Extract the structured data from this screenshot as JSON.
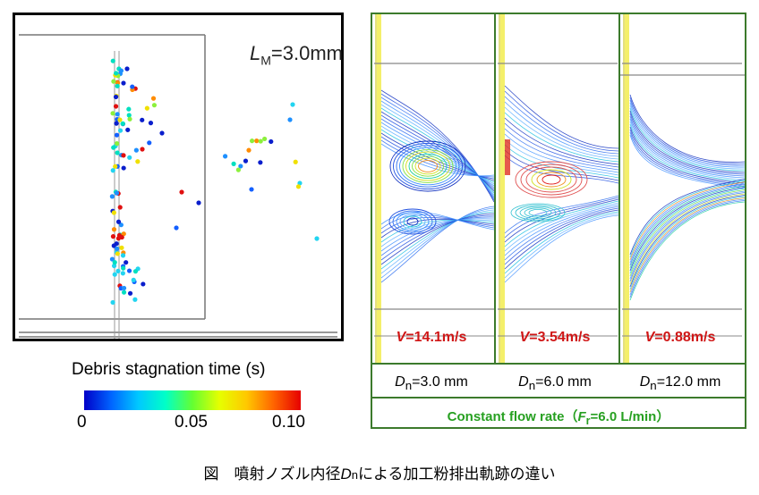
{
  "left_panel": {
    "lm_symbol": "L",
    "lm_subscript": "M",
    "lm_value": "=3.0mm"
  },
  "colorbar": {
    "title": "Debris stagnation time (s)",
    "ticks": [
      "0",
      "0.05",
      "0.10"
    ],
    "range": [
      0,
      0.1
    ],
    "colors": [
      "#0000c8",
      "#0064ff",
      "#00c8ff",
      "#00ffc8",
      "#64ff32",
      "#e6ff00",
      "#ffc800",
      "#ff6400",
      "#e60000"
    ]
  },
  "panels": [
    {
      "v_symbol": "V",
      "v_value": "=14.1m/s",
      "dn_symbol": "D",
      "dn_sub": "n",
      "dn_value": "=3.0 mm"
    },
    {
      "v_symbol": "V",
      "v_value": "=3.54m/s",
      "dn_symbol": "D",
      "dn_sub": "n",
      "dn_value": "=6.0 mm"
    },
    {
      "v_symbol": "V",
      "v_value": "=0.88m/s",
      "dn_symbol": "D",
      "dn_sub": "n",
      "dn_value": "=12.0 mm"
    }
  ],
  "flow": {
    "label_start": "Constant flow rate（",
    "f_symbol": "F",
    "f_sub": "r",
    "label_end": "=6.0 L/min）"
  },
  "caption": {
    "prefix": "図　噴射ノズル内径",
    "d_symbol": "D",
    "d_sub": "n",
    "suffix": "による加工粉排出軌跡の違い"
  },
  "colors": {
    "frame_green": "#3c7a2c",
    "velocity_red": "#d01616",
    "flow_green": "#27a021"
  }
}
